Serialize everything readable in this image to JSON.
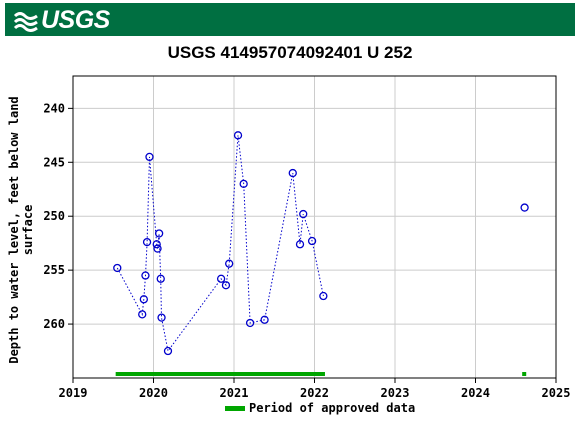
{
  "header": {
    "logo_text": "USGS",
    "brand_color": "#006f41",
    "logo_icon": "usgs-wave-icon"
  },
  "legend": {
    "label": "Period of approved data",
    "color": "#00a600"
  },
  "chart_data": {
    "type": "scatter",
    "title": "USGS 414957074092401 U 252",
    "xlabel": "",
    "ylabel": "Depth to water level, feet below land surface",
    "ylabel_lines": [
      "Depth to water level, feet below land",
      "surface"
    ],
    "xlim": [
      2019,
      2025
    ],
    "ylim": [
      265,
      237
    ],
    "y_inverted": true,
    "x_ticks": [
      2019,
      2020,
      2021,
      2022,
      2023,
      2024,
      2025
    ],
    "y_ticks": [
      240,
      245,
      250,
      255,
      260
    ],
    "grid": true,
    "marker": "open-circle",
    "marker_color": "#0000cc",
    "line_style": "dotted",
    "series": [
      {
        "points": [
          [
            2019.55,
            254.8
          ],
          [
            2019.86,
            259.1
          ],
          [
            2019.88,
            257.7
          ],
          [
            2019.9,
            255.5
          ],
          [
            2019.92,
            252.4
          ],
          [
            2019.95,
            244.5
          ],
          [
            2020.04,
            252.6
          ],
          [
            2020.05,
            253.0
          ],
          [
            2020.07,
            251.6
          ],
          [
            2020.09,
            255.8
          ],
          [
            2020.1,
            259.4
          ],
          [
            2020.18,
            262.5
          ],
          [
            2020.84,
            255.8
          ],
          [
            2020.9,
            256.4
          ],
          [
            2020.94,
            254.4
          ],
          [
            2021.05,
            242.5
          ],
          [
            2021.12,
            247.0
          ],
          [
            2021.2,
            259.9
          ],
          [
            2021.38,
            259.6
          ],
          [
            2021.73,
            246.0
          ],
          [
            2021.82,
            252.6
          ],
          [
            2021.86,
            249.8
          ],
          [
            2021.97,
            252.3
          ],
          [
            2022.11,
            257.4
          ]
        ]
      },
      {
        "points": [
          [
            2024.61,
            249.2
          ]
        ]
      }
    ],
    "approved_periods": [
      [
        2019.53,
        2022.13
      ],
      [
        2024.58,
        2024.63
      ]
    ]
  }
}
